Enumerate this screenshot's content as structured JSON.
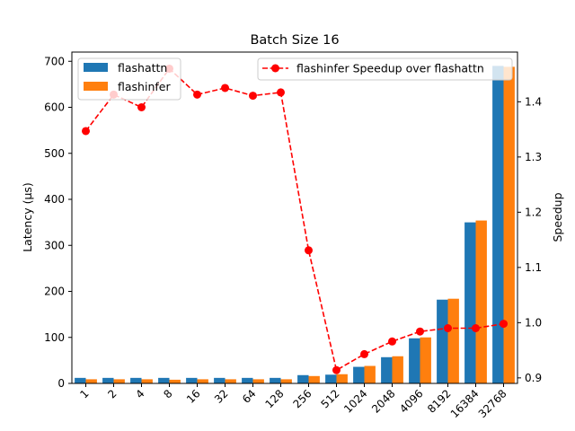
{
  "chart_data": {
    "type": "bar",
    "title": "Batch Size 16",
    "ylabel": "Latency (µs)",
    "y2label": "Speedup",
    "categories": [
      "1",
      "2",
      "4",
      "8",
      "16",
      "32",
      "64",
      "128",
      "256",
      "512",
      "1024",
      "2048",
      "4096",
      "8192",
      "16384",
      "32768"
    ],
    "ylim": [
      0,
      720
    ],
    "y2lim": [
      0.89,
      1.49
    ],
    "yticks": [
      0,
      100,
      200,
      300,
      400,
      500,
      600,
      700
    ],
    "y2ticks": [
      0.9,
      1.0,
      1.1,
      1.2,
      1.3,
      1.4
    ],
    "series": [
      {
        "name": "flashattn",
        "kind": "bar",
        "axis": "left",
        "color": "#1f77b4",
        "values": [
          12,
          12,
          12,
          12,
          12,
          12,
          12,
          12,
          18,
          19,
          36,
          57,
          98,
          182,
          350,
          690
        ]
      },
      {
        "name": "flashinfer",
        "kind": "bar",
        "axis": "left",
        "color": "#ff7f0e",
        "values": [
          9,
          9,
          9,
          8,
          9,
          9,
          9,
          9,
          16,
          20,
          38,
          59,
          100,
          184,
          354,
          688
        ]
      },
      {
        "name": "flashinfer Speedup over flashattn",
        "kind": "line",
        "axis": "right",
        "color": "#ff0000",
        "values": [
          1.347,
          1.413,
          1.39,
          1.46,
          1.413,
          1.425,
          1.411,
          1.417,
          1.131,
          0.914,
          0.943,
          0.966,
          0.984,
          0.99,
          0.99,
          0.998
        ]
      }
    ],
    "legend_left": "upper-left",
    "legend_right": "upper-right",
    "grid": false
  }
}
